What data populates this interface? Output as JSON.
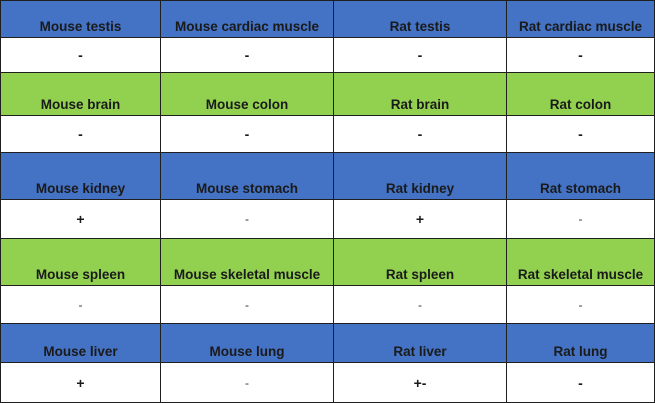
{
  "colors": {
    "blue_header": "#4472c4",
    "green_header": "#92d050",
    "value_bg": "#ffffff"
  },
  "rows": [
    {
      "type": "header",
      "color": "blue",
      "cells": [
        "Mouse testis",
        "Mouse cardiac muscle",
        "Rat testis",
        "Rat cardiac muscle"
      ]
    },
    {
      "type": "value",
      "style": "bold",
      "cells": [
        "-",
        "-",
        "-",
        "-"
      ]
    },
    {
      "type": "header",
      "color": "green",
      "cells": [
        "Mouse brain",
        "Mouse colon",
        "Rat brain",
        "Rat colon"
      ]
    },
    {
      "type": "value",
      "style": "bold",
      "cells": [
        "-",
        "-",
        "-",
        "-"
      ]
    },
    {
      "type": "header",
      "color": "blue",
      "cells": [
        "Mouse kidney",
        "Mouse stomach",
        "Rat kidney",
        "Rat stomach"
      ]
    },
    {
      "type": "value",
      "style": "mixed",
      "cells": [
        "+",
        "-",
        "+",
        "-"
      ]
    },
    {
      "type": "header",
      "color": "green",
      "cells": [
        "Mouse spleen",
        "Mouse skeletal muscle",
        "Rat spleen",
        "Rat skeletal muscle"
      ]
    },
    {
      "type": "value",
      "style": "light",
      "cells": [
        "-",
        "-",
        "-",
        "-"
      ]
    },
    {
      "type": "header",
      "color": "blue",
      "cells": [
        "Mouse liver",
        "Mouse lung",
        "Rat liver",
        "Rat lung"
      ]
    },
    {
      "type": "value",
      "style": "mixed",
      "cells": [
        "+",
        "-",
        "+-",
        "-"
      ]
    }
  ]
}
